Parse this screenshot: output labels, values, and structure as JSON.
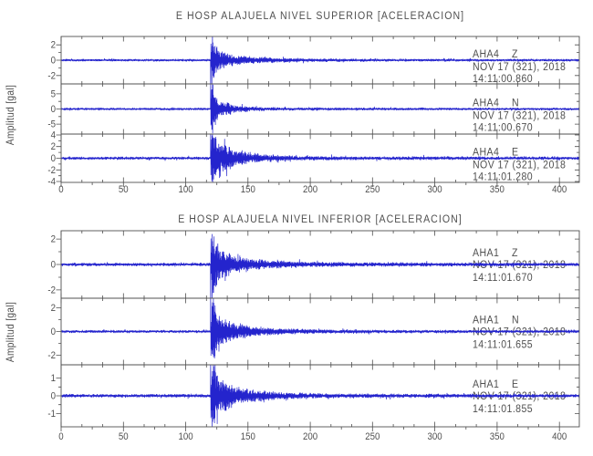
{
  "page": {
    "background": "#ffffff"
  },
  "colors": {
    "trace_color": "#2424cd",
    "frame_color": "#4f4f4f",
    "text_color": "#4f4f4f"
  },
  "chart_data": [
    {
      "type": "line",
      "panel": "nivel-superior",
      "title": "E HOSP ALAJUELA NIVEL SUPERIOR [ACELERACION]",
      "ylabel": "Amplitud [gal]",
      "xlabel": "",
      "xlim": [
        0,
        416
      ],
      "xticks": [
        0,
        50,
        100,
        150,
        200,
        250,
        300,
        350,
        400
      ],
      "xtick_minor_step": 25,
      "grid": false,
      "legend": "none",
      "traces": [
        {
          "station": "AHA4",
          "component": "Z",
          "date_label": "NOV 17 (321), 2018",
          "time_label": "14:11:00.860",
          "yticks": [
            2,
            0,
            -2
          ],
          "ytick_minors": [
            1,
            -1
          ],
          "ylim": [
            -3.1,
            3.1
          ],
          "waveform": {
            "onset_s": 120,
            "peak_gal": 2.7,
            "onset_spike_gal": -3.6,
            "attack_s": 1.2,
            "decay_fast_s": 6,
            "decay_slow_s": 26,
            "fast_fraction": 0.7,
            "lobe_amp": 0.2,
            "noise_gal": 0.13,
            "coda_end_s": 185,
            "seed": 7
          }
        },
        {
          "station": "AHA4",
          "component": "N",
          "date_label": "NOV 17 (321), 2018",
          "time_label": "14:11:00.670",
          "yticks": [
            5,
            0,
            -5
          ],
          "ytick_minors": [
            2.5,
            -2.5
          ],
          "ylim": [
            -8.3,
            8.3
          ],
          "waveform": {
            "onset_s": 120,
            "peak_gal": 7.6,
            "onset_spike_gal": 9.0,
            "attack_s": 1.2,
            "decay_fast_s": 5.5,
            "decay_slow_s": 13,
            "fast_fraction": 0.6,
            "lobe_amp": 0.45,
            "noise_gal": 0.3,
            "coda_end_s": 175,
            "seed": 13
          }
        },
        {
          "station": "AHA4",
          "component": "E",
          "date_label": "NOV 17 (321), 2018",
          "time_label": "14:11:01.280",
          "yticks": [
            4,
            2,
            0,
            -2,
            -4
          ],
          "ytick_minors": [
            3,
            1,
            -1,
            -3
          ],
          "ylim": [
            -4.15,
            4.15
          ],
          "waveform": {
            "onset_s": 120,
            "peak_gal": 4.6,
            "onset_spike_gal": 4.8,
            "attack_s": 1.4,
            "decay_fast_s": 9,
            "decay_slow_s": 20,
            "fast_fraction": 0.55,
            "lobe_amp": 0.35,
            "noise_gal": 0.22,
            "coda_end_s": 190,
            "seed": 21
          }
        }
      ]
    },
    {
      "type": "line",
      "panel": "nivel-inferior",
      "title": "E HOSP ALAJUELA NIVEL INFERIOR [ACELERACION]",
      "ylabel": "Amplitud [gal]",
      "xlabel": "",
      "xlim": [
        0,
        416
      ],
      "xticks": [
        0,
        50,
        100,
        150,
        200,
        250,
        300,
        350,
        400
      ],
      "xtick_minor_step": 25,
      "grid": false,
      "legend": "none",
      "traces": [
        {
          "station": "AHA1",
          "component": "Z",
          "date_label": "NOV 17 (321), 2018",
          "time_label": "14:11:01.670",
          "yticks": [
            2,
            0,
            -2
          ],
          "ytick_minors": [
            1,
            -1
          ],
          "ylim": [
            -2.65,
            2.65
          ],
          "waveform": {
            "onset_s": 120,
            "peak_gal": 2.5,
            "onset_spike_gal": -3.4,
            "attack_s": 1.2,
            "decay_fast_s": 6.5,
            "decay_slow_s": 28,
            "fast_fraction": 0.68,
            "lobe_amp": 0.2,
            "noise_gal": 0.11,
            "coda_end_s": 200,
            "seed": 29
          }
        },
        {
          "station": "AHA1",
          "component": "N",
          "date_label": "NOV 17 (321), 2018",
          "time_label": "14:11:01.655",
          "yticks": [
            2,
            0,
            -2
          ],
          "ytick_minors": [
            1,
            -1
          ],
          "ylim": [
            -2.8,
            2.8
          ],
          "waveform": {
            "onset_s": 120,
            "peak_gal": 2.6,
            "onset_spike_gal": 3.4,
            "attack_s": 1.3,
            "decay_fast_s": 7,
            "decay_slow_s": 24,
            "fast_fraction": 0.6,
            "lobe_amp": 0.3,
            "noise_gal": 0.1,
            "coda_end_s": 190,
            "seed": 37
          }
        },
        {
          "station": "AHA1",
          "component": "E",
          "date_label": "NOV 17 (321), 2018",
          "time_label": "14:11:01.855",
          "yticks": [
            1,
            0,
            -1
          ],
          "ytick_minors": [
            0.5,
            -0.5
          ],
          "ylim": [
            -1.75,
            1.75
          ],
          "waveform": {
            "onset_s": 120,
            "peak_gal": 1.65,
            "onset_spike_gal": 2.1,
            "attack_s": 1.3,
            "decay_fast_s": 9,
            "decay_slow_s": 24,
            "fast_fraction": 0.55,
            "lobe_amp": 0.3,
            "noise_gal": 0.08,
            "coda_end_s": 185,
            "seed": 43
          }
        }
      ]
    }
  ]
}
